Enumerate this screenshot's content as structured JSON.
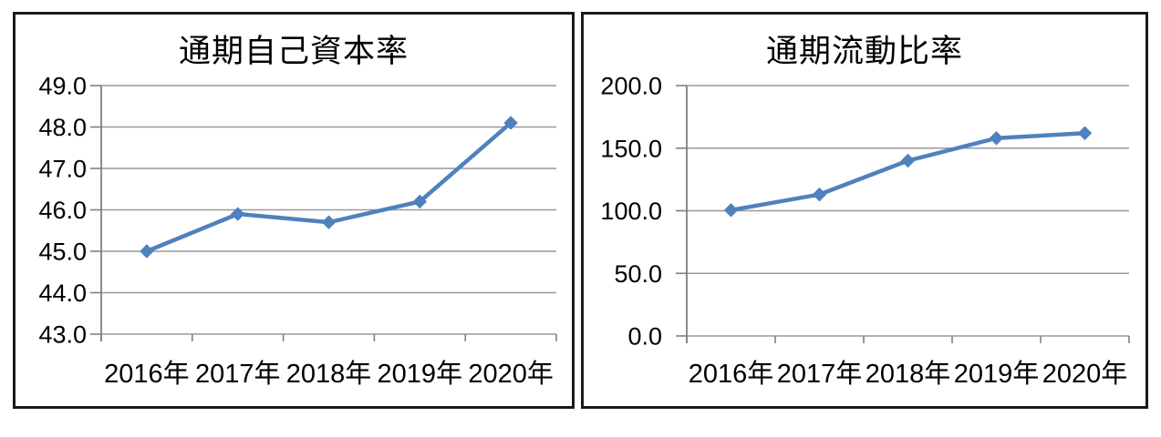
{
  "page": {
    "background_color": "#ffffff",
    "frame_border_color": "#1a1a1a"
  },
  "chart_data": [
    {
      "type": "line",
      "title": "通期自己資本率",
      "categories": [
        "2016年",
        "2017年",
        "2018年",
        "2019年",
        "2020年"
      ],
      "series": [
        {
          "name": "通期自己資本率",
          "values": [
            45.0,
            45.9,
            45.7,
            46.2,
            48.1
          ]
        }
      ],
      "ylim": [
        43.0,
        49.0
      ],
      "ytick_step": 1.0,
      "ytick_labels": [
        "43.0",
        "44.0",
        "45.0",
        "46.0",
        "47.0",
        "48.0",
        "49.0"
      ],
      "xlabel": "",
      "ylabel": "",
      "grid": "horizontal",
      "legend": "none",
      "line_color": "#4F81BD",
      "marker": "diamond",
      "gridline_color": "#999999",
      "axis_color": "#808080"
    },
    {
      "type": "line",
      "title": "通期流動比率",
      "categories": [
        "2016年",
        "2017年",
        "2018年",
        "2019年",
        "2020年"
      ],
      "series": [
        {
          "name": "通期流動比率",
          "values": [
            100.5,
            113.0,
            140.0,
            158.0,
            162.0
          ]
        }
      ],
      "ylim": [
        0.0,
        200.0
      ],
      "ytick_step": 50.0,
      "ytick_labels": [
        "0.0",
        "50.0",
        "100.0",
        "150.0",
        "200.0"
      ],
      "xlabel": "",
      "ylabel": "",
      "grid": "horizontal",
      "legend": "none",
      "line_color": "#4F81BD",
      "marker": "diamond",
      "gridline_color": "#999999",
      "axis_color": "#808080"
    }
  ]
}
